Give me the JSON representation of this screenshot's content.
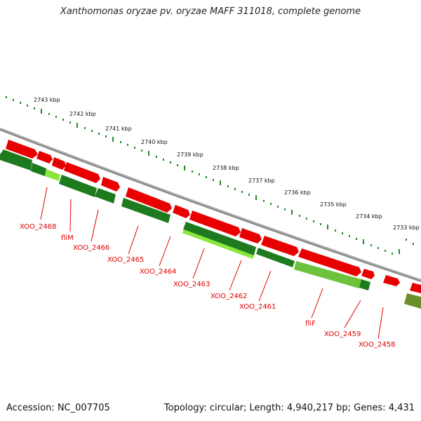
{
  "title": "Xanthomonas oryzae pv. oryzae MAFF 311018, complete genome",
  "accession_text": "Accession: NC_007705",
  "topology_text": "Topology: circular; Length: 4,940,217 bp; Genes: 4,431",
  "colors": {
    "backbone": "#8a8a8a",
    "forward_gene": "#e80000",
    "forward_gene_highlight": "#ff6f6f",
    "reverse_gene_dark": "#1e7a1e",
    "reverse_gene_light": "#8ce63c",
    "reverse_gene_olive": "#6c8e2a",
    "ruler_major": "#238a23",
    "ruler_minor": "#238a23",
    "label_red": "#e00000"
  },
  "ruler": {
    "unit": "kbp",
    "ticks": [
      {
        "kbp": 2743,
        "label": "2743 kbp"
      },
      {
        "kbp": 2742,
        "label": "2742 kbp"
      },
      {
        "kbp": 2741,
        "label": "2741 kbp"
      },
      {
        "kbp": 2740,
        "label": "2740 kbp"
      },
      {
        "kbp": 2739,
        "label": "2739 kbp"
      },
      {
        "kbp": 2738,
        "label": "2738 kbp"
      },
      {
        "kbp": 2737,
        "label": "2737 kbp"
      },
      {
        "kbp": 2736,
        "label": "2736 kbp"
      },
      {
        "kbp": 2735,
        "label": "2735 kbp"
      },
      {
        "kbp": 2734,
        "label": "2734 kbp"
      },
      {
        "kbp": 2733,
        "label": "2733 kbp"
      }
    ]
  },
  "gene_labels": [
    {
      "text": "XOO_2468"
    },
    {
      "text": "fliM"
    },
    {
      "text": "XOO_2466"
    },
    {
      "text": "XOO_2465"
    },
    {
      "text": "XOO_2464"
    },
    {
      "text": "XOO_2463"
    },
    {
      "text": "XOO_2462"
    },
    {
      "text": "XOO_2461"
    },
    {
      "text": "fliF"
    },
    {
      "text": "XOO_2459"
    },
    {
      "text": "XOO_2458"
    }
  ]
}
